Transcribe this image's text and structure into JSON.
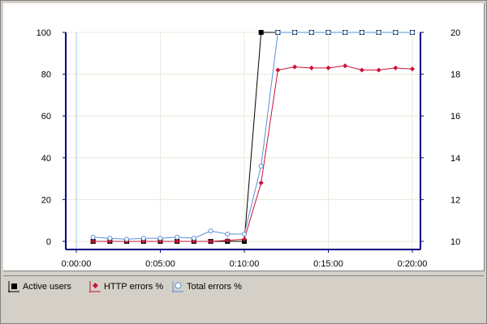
{
  "colors": {
    "active_users": "#000000",
    "http_errors": "#cc1133",
    "total_errors": "#5a8fd6",
    "grid": "#e8e8d8",
    "axis": "#000080"
  },
  "legend": {
    "items": [
      {
        "label": "Active users",
        "icon": "square-marker-icon",
        "color": "#000000"
      },
      {
        "label": "HTTP errors %",
        "icon": "diamond-marker-icon",
        "color": "#cc1133"
      },
      {
        "label": "Total errors %",
        "icon": "circle-marker-icon",
        "color": "#5a8fd6"
      }
    ]
  },
  "chart_data": {
    "type": "line",
    "title": "",
    "xlabel": "",
    "ylabel": "",
    "x_ticks": [
      "0:00:00",
      "0:05:00",
      "0:10:00",
      "0:15:00",
      "0:20:00"
    ],
    "xlim": [
      0,
      1260
    ],
    "y_left_ticks": [
      "0",
      "20",
      "40",
      "60",
      "80",
      "100"
    ],
    "y_left_range": [
      0,
      100
    ],
    "y_right_ticks": [
      "10",
      "12",
      "14",
      "16",
      "18",
      "20"
    ],
    "y_right_range": [
      10,
      20
    ],
    "grid": true,
    "legend_position": "bottom",
    "series": [
      {
        "name": "Active users",
        "axis": "right",
        "marker": "square",
        "x": [
          60,
          120,
          180,
          240,
          300,
          360,
          420,
          480,
          540,
          600,
          660,
          720,
          780,
          840,
          900,
          960,
          1020,
          1080,
          1140,
          1200
        ],
        "y": [
          10,
          10,
          10,
          10,
          10,
          10,
          10,
          10,
          10,
          10,
          20,
          20,
          20,
          20,
          20,
          20,
          20,
          20,
          20,
          20
        ]
      },
      {
        "name": "HTTP errors %",
        "axis": "left",
        "marker": "diamond",
        "x": [
          60,
          120,
          180,
          240,
          300,
          360,
          420,
          480,
          540,
          600,
          660,
          720,
          780,
          840,
          900,
          960,
          1020,
          1080,
          1140,
          1200
        ],
        "y": [
          0,
          0,
          0,
          0,
          0,
          0,
          0,
          0,
          0.5,
          1,
          28,
          82,
          83.5,
          83,
          83,
          84,
          82,
          82,
          83,
          82.5
        ]
      },
      {
        "name": "Total errors %",
        "axis": "left",
        "marker": "circle",
        "x": [
          60,
          120,
          180,
          240,
          300,
          360,
          420,
          480,
          540,
          600,
          660,
          720,
          780,
          840,
          900,
          960,
          1020,
          1080,
          1140,
          1200
        ],
        "y": [
          2,
          1.5,
          1,
          1.5,
          1.5,
          2,
          1.5,
          5,
          3.5,
          3.5,
          36,
          100,
          100,
          100,
          100,
          100,
          100,
          100,
          100,
          100
        ]
      }
    ]
  }
}
